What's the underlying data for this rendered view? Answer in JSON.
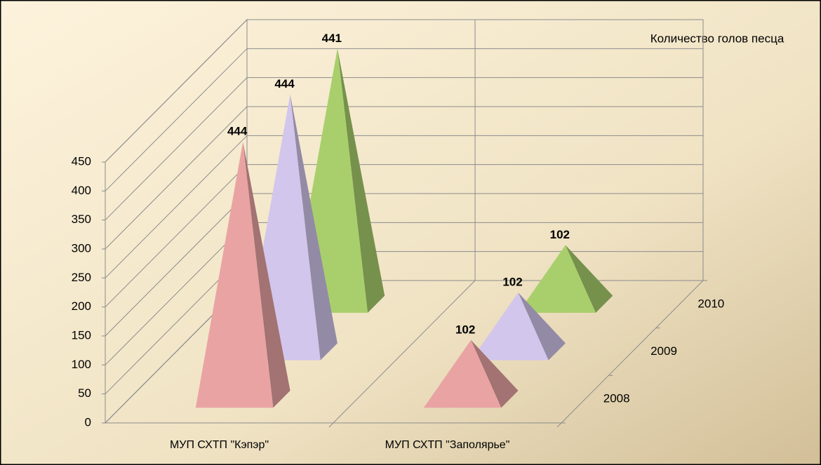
{
  "chart_data": {
    "type": "pyramid3d",
    "title": "Количество голов песца",
    "categories": [
      "МУП СХТП \"Кэпэр\"",
      "МУП СХТП \"Заполярье\""
    ],
    "series": [
      {
        "name": "2008",
        "color": "#e9a3a3",
        "values": [
          444,
          102
        ]
      },
      {
        "name": "2009",
        "color": "#d2c6ec",
        "values": [
          444,
          102
        ]
      },
      {
        "name": "2010",
        "color": "#a9cf6c",
        "values": [
          441,
          102
        ]
      }
    ],
    "ylim": [
      0,
      450
    ],
    "yticks": [
      0,
      50,
      100,
      150,
      200,
      250,
      300,
      350,
      400,
      450
    ],
    "grid": true
  }
}
